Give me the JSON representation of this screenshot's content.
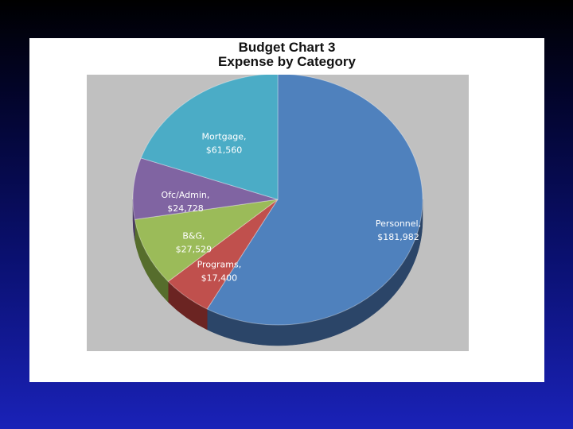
{
  "chart_data": {
    "type": "pie",
    "title": [
      "Budget Chart 3",
      "Expense by Category"
    ],
    "slices": [
      {
        "label": "Personnel",
        "value": 181982,
        "value_text": "$181,982",
        "color": "#4f81bd",
        "side_color": "#2b4568"
      },
      {
        "label": "Programs",
        "value": 17400,
        "value_text": "$17,400",
        "color": "#c0504d",
        "side_color": "#6b2422"
      },
      {
        "label": "B&G",
        "value": 27529,
        "value_text": "$27,529",
        "color": "#9bbb59",
        "side_color": "#566d2c"
      },
      {
        "label": "Ofc/Admin",
        "value": 24728,
        "value_text": "$24,728",
        "color": "#8064a2",
        "side_color": "#4a3766"
      },
      {
        "label": "Mortgage",
        "value": 61560,
        "value_text": "$61,560",
        "color": "#4bacc6",
        "side_color": "#2a6778"
      }
    ],
    "start_angle": "12 o'clock, clockwise",
    "style": "3d",
    "legend": "none",
    "plot_background": "#c0c0c0",
    "label_color": "#ffffff"
  }
}
